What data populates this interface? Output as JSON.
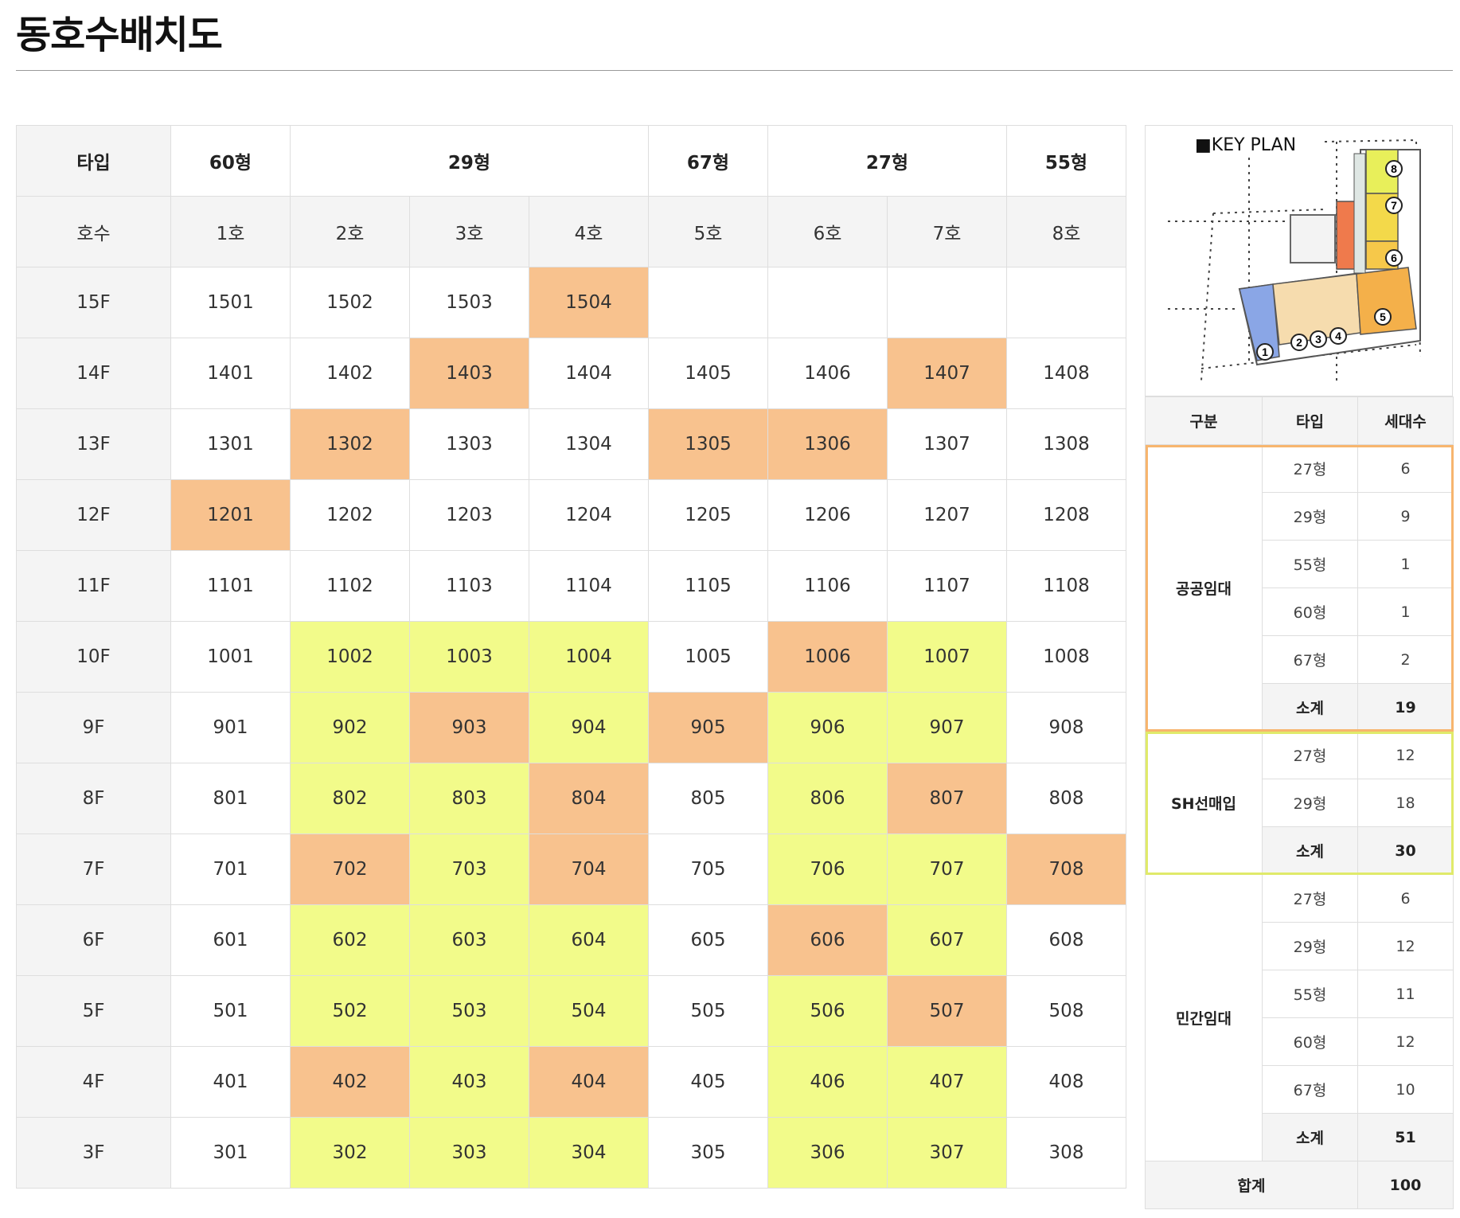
{
  "page": {
    "title": "동호수배치도"
  },
  "colors": {
    "public": "#f8c28e",
    "sh": "#f2fb8a",
    "header_bg": "#f4f4f4"
  },
  "main_table": {
    "row_label_type": "타입",
    "row_label_unit": "호수",
    "types": [
      "60형",
      "29형",
      "67형",
      "27형",
      "55형"
    ],
    "units": [
      "1호",
      "2호",
      "3호",
      "4호",
      "5호",
      "6호",
      "7호",
      "8호"
    ],
    "floors": [
      {
        "floor": "15F",
        "cells": [
          {
            "v": "1501",
            "c": ""
          },
          {
            "v": "1502",
            "c": ""
          },
          {
            "v": "1503",
            "c": ""
          },
          {
            "v": "1504",
            "c": "o"
          },
          {
            "v": "",
            "c": ""
          },
          {
            "v": "",
            "c": ""
          },
          {
            "v": "",
            "c": ""
          },
          {
            "v": "",
            "c": ""
          }
        ]
      },
      {
        "floor": "14F",
        "cells": [
          {
            "v": "1401",
            "c": ""
          },
          {
            "v": "1402",
            "c": ""
          },
          {
            "v": "1403",
            "c": "o"
          },
          {
            "v": "1404",
            "c": ""
          },
          {
            "v": "1405",
            "c": ""
          },
          {
            "v": "1406",
            "c": ""
          },
          {
            "v": "1407",
            "c": "o"
          },
          {
            "v": "1408",
            "c": ""
          }
        ]
      },
      {
        "floor": "13F",
        "cells": [
          {
            "v": "1301",
            "c": ""
          },
          {
            "v": "1302",
            "c": "o"
          },
          {
            "v": "1303",
            "c": ""
          },
          {
            "v": "1304",
            "c": ""
          },
          {
            "v": "1305",
            "c": "o"
          },
          {
            "v": "1306",
            "c": "o"
          },
          {
            "v": "1307",
            "c": ""
          },
          {
            "v": "1308",
            "c": ""
          }
        ]
      },
      {
        "floor": "12F",
        "cells": [
          {
            "v": "1201",
            "c": "o"
          },
          {
            "v": "1202",
            "c": ""
          },
          {
            "v": "1203",
            "c": ""
          },
          {
            "v": "1204",
            "c": ""
          },
          {
            "v": "1205",
            "c": ""
          },
          {
            "v": "1206",
            "c": ""
          },
          {
            "v": "1207",
            "c": ""
          },
          {
            "v": "1208",
            "c": ""
          }
        ]
      },
      {
        "floor": "11F",
        "cells": [
          {
            "v": "1101",
            "c": ""
          },
          {
            "v": "1102",
            "c": ""
          },
          {
            "v": "1103",
            "c": ""
          },
          {
            "v": "1104",
            "c": ""
          },
          {
            "v": "1105",
            "c": ""
          },
          {
            "v": "1106",
            "c": ""
          },
          {
            "v": "1107",
            "c": ""
          },
          {
            "v": "1108",
            "c": ""
          }
        ]
      },
      {
        "floor": "10F",
        "cells": [
          {
            "v": "1001",
            "c": ""
          },
          {
            "v": "1002",
            "c": "y"
          },
          {
            "v": "1003",
            "c": "y"
          },
          {
            "v": "1004",
            "c": "y"
          },
          {
            "v": "1005",
            "c": ""
          },
          {
            "v": "1006",
            "c": "o"
          },
          {
            "v": "1007",
            "c": "y"
          },
          {
            "v": "1008",
            "c": ""
          }
        ]
      },
      {
        "floor": "9F",
        "cells": [
          {
            "v": "901",
            "c": ""
          },
          {
            "v": "902",
            "c": "y"
          },
          {
            "v": "903",
            "c": "o"
          },
          {
            "v": "904",
            "c": "y"
          },
          {
            "v": "905",
            "c": "o"
          },
          {
            "v": "906",
            "c": "y"
          },
          {
            "v": "907",
            "c": "y"
          },
          {
            "v": "908",
            "c": ""
          }
        ]
      },
      {
        "floor": "8F",
        "cells": [
          {
            "v": "801",
            "c": ""
          },
          {
            "v": "802",
            "c": "y"
          },
          {
            "v": "803",
            "c": "y"
          },
          {
            "v": "804",
            "c": "o"
          },
          {
            "v": "805",
            "c": ""
          },
          {
            "v": "806",
            "c": "y"
          },
          {
            "v": "807",
            "c": "o"
          },
          {
            "v": "808",
            "c": ""
          }
        ]
      },
      {
        "floor": "7F",
        "cells": [
          {
            "v": "701",
            "c": ""
          },
          {
            "v": "702",
            "c": "o"
          },
          {
            "v": "703",
            "c": "y"
          },
          {
            "v": "704",
            "c": "o"
          },
          {
            "v": "705",
            "c": ""
          },
          {
            "v": "706",
            "c": "y"
          },
          {
            "v": "707",
            "c": "y"
          },
          {
            "v": "708",
            "c": "o"
          }
        ]
      },
      {
        "floor": "6F",
        "cells": [
          {
            "v": "601",
            "c": ""
          },
          {
            "v": "602",
            "c": "y"
          },
          {
            "v": "603",
            "c": "y"
          },
          {
            "v": "604",
            "c": "y"
          },
          {
            "v": "605",
            "c": ""
          },
          {
            "v": "606",
            "c": "o"
          },
          {
            "v": "607",
            "c": "y"
          },
          {
            "v": "608",
            "c": ""
          }
        ]
      },
      {
        "floor": "5F",
        "cells": [
          {
            "v": "501",
            "c": ""
          },
          {
            "v": "502",
            "c": "y"
          },
          {
            "v": "503",
            "c": "y"
          },
          {
            "v": "504",
            "c": "y"
          },
          {
            "v": "505",
            "c": ""
          },
          {
            "v": "506",
            "c": "y"
          },
          {
            "v": "507",
            "c": "o"
          },
          {
            "v": "508",
            "c": ""
          }
        ]
      },
      {
        "floor": "4F",
        "cells": [
          {
            "v": "401",
            "c": ""
          },
          {
            "v": "402",
            "c": "o"
          },
          {
            "v": "403",
            "c": "y"
          },
          {
            "v": "404",
            "c": "o"
          },
          {
            "v": "405",
            "c": ""
          },
          {
            "v": "406",
            "c": "y"
          },
          {
            "v": "407",
            "c": "y"
          },
          {
            "v": "408",
            "c": ""
          }
        ]
      },
      {
        "floor": "3F",
        "cells": [
          {
            "v": "301",
            "c": ""
          },
          {
            "v": "302",
            "c": "y"
          },
          {
            "v": "303",
            "c": "y"
          },
          {
            "v": "304",
            "c": "y"
          },
          {
            "v": "305",
            "c": ""
          },
          {
            "v": "306",
            "c": "y"
          },
          {
            "v": "307",
            "c": "y"
          },
          {
            "v": "308",
            "c": ""
          }
        ]
      }
    ]
  },
  "key_plan": {
    "label": "■KEY PLAN",
    "markers": [
      "1",
      "2",
      "3",
      "4",
      "5",
      "6",
      "7",
      "8"
    ]
  },
  "summary": {
    "headers": [
      "구분",
      "타입",
      "세대수"
    ],
    "groups": [
      {
        "name": "공공임대",
        "rows": [
          [
            "27형",
            "6"
          ],
          [
            "29형",
            "9"
          ],
          [
            "55형",
            "1"
          ],
          [
            "60형",
            "1"
          ],
          [
            "67형",
            "2"
          ]
        ],
        "subtotal_label": "소계",
        "subtotal": "19"
      },
      {
        "name": "SH선매입",
        "rows": [
          [
            "27형",
            "12"
          ],
          [
            "29형",
            "18"
          ]
        ],
        "subtotal_label": "소계",
        "subtotal": "30"
      },
      {
        "name": "민간임대",
        "rows": [
          [
            "27형",
            "6"
          ],
          [
            "29형",
            "12"
          ],
          [
            "55형",
            "11"
          ],
          [
            "60형",
            "12"
          ],
          [
            "67형",
            "10"
          ]
        ],
        "subtotal_label": "소계",
        "subtotal": "51"
      }
    ],
    "total_label": "합계",
    "total": "100"
  }
}
